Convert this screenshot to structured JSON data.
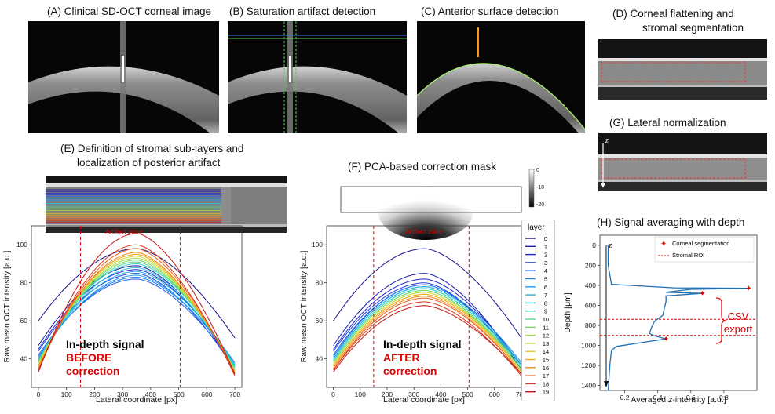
{
  "panels": {
    "a": "(A) Clinical SD-OCT corneal image",
    "b": "(B) Saturation artifact detection",
    "c": "(C) Anterior surface detection",
    "d1": "(D) Corneal flattening and",
    "d2": "stromal segmentation",
    "e1": "(E) Definition of stromal sub-layers and",
    "e2": "localization of posterior artifact",
    "f": "(F) PCA-based correction mask",
    "g": "(G) Lateral normalization",
    "h": "(H) Signal averaging with depth"
  },
  "mask_colorbar": {
    "ticks": [
      "0",
      "-10",
      "-20"
    ]
  },
  "artifact_zone_label": "Artifact zone",
  "plot_e": {
    "label1": "In-depth signal",
    "label2": "BEFORE",
    "label3": "correction",
    "ylabel": "Raw mean OCT intensity [a.u.]",
    "xlabel": "Lateral coordinate [px]"
  },
  "plot_f": {
    "label1": "In-depth signal",
    "label2": "AFTER",
    "label3": "correction",
    "ylabel": "Raw mean OCT intensity [a.u.]",
    "xlabel": "Lateral coordinate [px]"
  },
  "legend": {
    "title": "layer",
    "entries": [
      "0",
      "1",
      "2",
      "3",
      "4",
      "5",
      "6",
      "7",
      "8",
      "9",
      "10",
      "11",
      "12",
      "13",
      "14",
      "15",
      "16",
      "17",
      "18",
      "19"
    ]
  },
  "plot_h": {
    "ylabel": "Depth [μm]",
    "xlabel": "Averaged z-intensity [a.u.]",
    "z_label": "z",
    "legend1": "Corneal segmentation",
    "legend2": "Stromal ROI",
    "csv1": "CSV",
    "csv2": "export"
  },
  "g_z_label": "z",
  "chart_data": [
    {
      "type": "line",
      "xlabel": "Lateral coordinate [px]",
      "ylabel": "Raw mean OCT intensity [a.u.]",
      "xlim": [
        -25,
        725
      ],
      "ylim": [
        25,
        110
      ],
      "xticks": [
        0,
        100,
        200,
        300,
        400,
        500,
        600,
        700
      ],
      "yticks": [
        40,
        60,
        80,
        100
      ],
      "artifact_zone": [
        150,
        505
      ],
      "peak_x": 350,
      "series_shape": "in each layer the intensity rises from left edge (x=0) to a peak near x=350 and falls to the right edge (x=700)",
      "series": [
        {
          "name": "0",
          "values": [
            60,
            98,
            51
          ]
        },
        {
          "name": "1",
          "values": [
            47,
            89,
            34
          ]
        },
        {
          "name": "2",
          "values": [
            45,
            87,
            36
          ]
        },
        {
          "name": "3",
          "values": [
            44,
            85,
            34
          ]
        },
        {
          "name": "4",
          "values": [
            42,
            82,
            36
          ]
        },
        {
          "name": "5",
          "values": [
            41,
            83,
            38
          ]
        },
        {
          "name": "6",
          "values": [
            40,
            84,
            37
          ]
        },
        {
          "name": "7",
          "values": [
            40,
            86,
            37
          ]
        },
        {
          "name": "8",
          "values": [
            39,
            88,
            36
          ]
        },
        {
          "name": "9",
          "values": [
            39,
            90,
            36
          ]
        },
        {
          "name": "10",
          "values": [
            38,
            91,
            35
          ]
        },
        {
          "name": "11",
          "values": [
            38,
            92,
            34
          ]
        },
        {
          "name": "12",
          "values": [
            37,
            93,
            34
          ]
        },
        {
          "name": "13",
          "values": [
            37,
            94,
            33
          ]
        },
        {
          "name": "14",
          "values": [
            36,
            95,
            33
          ]
        },
        {
          "name": "15",
          "values": [
            36,
            95,
            33
          ]
        },
        {
          "name": "16",
          "values": [
            35,
            96,
            32
          ]
        },
        {
          "name": "17",
          "values": [
            34,
            98,
            32
          ]
        },
        {
          "name": "18",
          "values": [
            34,
            100,
            31
          ]
        },
        {
          "name": "19",
          "values": [
            33,
            106,
            32
          ]
        }
      ]
    },
    {
      "type": "line",
      "xlabel": "Lateral coordinate [px]",
      "ylabel": "Raw mean OCT intensity [a.u.]",
      "xlim": [
        -25,
        700
      ],
      "ylim": [
        25,
        110
      ],
      "xticks": [
        0,
        100,
        200,
        300,
        400,
        500,
        600,
        700
      ],
      "yticks": [
        40,
        60,
        80,
        100
      ],
      "artifact_zone": [
        150,
        505
      ],
      "peak_x": 340,
      "series_shape": "in each layer the intensity rises from left edge (x=0) to a peak near x=340 and falls to the right edge (x=700)",
      "series": [
        {
          "name": "0",
          "values": [
            60,
            98,
            51
          ]
        },
        {
          "name": "1",
          "values": [
            47,
            85,
            34
          ]
        },
        {
          "name": "2",
          "values": [
            45,
            82,
            36
          ]
        },
        {
          "name": "3",
          "values": [
            44,
            80,
            34
          ]
        },
        {
          "name": "4",
          "values": [
            42,
            79,
            36
          ]
        },
        {
          "name": "5",
          "values": [
            41,
            79,
            38
          ]
        },
        {
          "name": "6",
          "values": [
            40,
            78,
            37
          ]
        },
        {
          "name": "7",
          "values": [
            40,
            78,
            37
          ]
        },
        {
          "name": "8",
          "values": [
            39,
            77,
            36
          ]
        },
        {
          "name": "9",
          "values": [
            39,
            77,
            36
          ]
        },
        {
          "name": "10",
          "values": [
            38,
            76,
            35
          ]
        },
        {
          "name": "11",
          "values": [
            38,
            76,
            34
          ]
        },
        {
          "name": "12",
          "values": [
            37,
            75,
            34
          ]
        },
        {
          "name": "13",
          "values": [
            37,
            75,
            33
          ]
        },
        {
          "name": "14",
          "values": [
            36,
            74,
            33
          ]
        },
        {
          "name": "15",
          "values": [
            36,
            74,
            33
          ]
        },
        {
          "name": "16",
          "values": [
            35,
            73,
            32
          ]
        },
        {
          "name": "17",
          "values": [
            34,
            72,
            32
          ]
        },
        {
          "name": "18",
          "values": [
            34,
            70,
            31
          ]
        },
        {
          "name": "19",
          "values": [
            33,
            68,
            32
          ]
        }
      ]
    },
    {
      "type": "line",
      "xlabel": "Averaged z-intensity [a.u.]",
      "ylabel": "Depth [μm]",
      "xlim": [
        0.05,
        1.0
      ],
      "ylim": [
        1450,
        -100
      ],
      "xticks": [
        0.2,
        0.4,
        0.6,
        0.8
      ],
      "yticks": [
        0,
        200,
        400,
        600,
        800,
        1000,
        1200,
        1400
      ],
      "stromal_roi_depths": [
        740,
        900
      ],
      "segmentation_points": [
        [
          0.95,
          430
        ],
        [
          0.67,
          480
        ],
        [
          0.45,
          935
        ]
      ],
      "profile": [
        [
          0.1,
          0
        ],
        [
          0.1,
          200
        ],
        [
          0.12,
          390
        ],
        [
          0.5,
          425
        ],
        [
          0.95,
          430
        ],
        [
          0.6,
          440
        ],
        [
          0.45,
          470
        ],
        [
          0.67,
          480
        ],
        [
          0.45,
          505
        ],
        [
          0.45,
          560
        ],
        [
          0.43,
          700
        ],
        [
          0.38,
          760
        ],
        [
          0.36,
          830
        ],
        [
          0.35,
          880
        ],
        [
          0.37,
          900
        ],
        [
          0.45,
          935
        ],
        [
          0.35,
          960
        ],
        [
          0.15,
          1010
        ],
        [
          0.12,
          1050
        ],
        [
          0.11,
          1200
        ],
        [
          0.1,
          1450
        ]
      ]
    }
  ]
}
